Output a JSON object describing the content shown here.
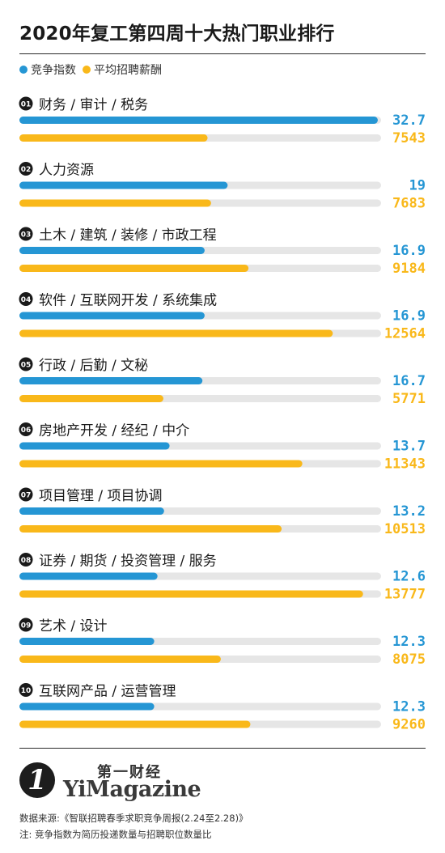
{
  "title": "2020年复工第四周十大热门职业排行",
  "colors": {
    "blue": "#2596d4",
    "yellow": "#f9b81a",
    "track": "#e6e6e6",
    "badge": "#1a1a1a"
  },
  "chart_data": {
    "type": "bar",
    "orientation": "horizontal",
    "title": "2020年复工第四周十大热门职业排行",
    "legend_position": "top-left",
    "categories": [
      {
        "rank": "01",
        "label": "财务 / 审计 / 税务"
      },
      {
        "rank": "02",
        "label": "人力资源"
      },
      {
        "rank": "03",
        "label": "土木 / 建筑 / 装修 / 市政工程"
      },
      {
        "rank": "04",
        "label": "软件 / 互联网开发 / 系统集成"
      },
      {
        "rank": "05",
        "label": "行政 / 后勤 / 文秘"
      },
      {
        "rank": "06",
        "label": "房地产开发 / 经纪 / 中介"
      },
      {
        "rank": "07",
        "label": "项目管理 / 项目协调"
      },
      {
        "rank": "08",
        "label": "证券 / 期货 / 投资管理 / 服务"
      },
      {
        "rank": "09",
        "label": "艺术 / 设计"
      },
      {
        "rank": "10",
        "label": "互联网产品 / 运营管理"
      }
    ],
    "series": [
      {
        "name": "竞争指数",
        "color": "#2596d4",
        "max": 33.0,
        "values": [
          32.7,
          19,
          16.9,
          16.9,
          16.7,
          13.7,
          13.2,
          12.6,
          12.3,
          12.3
        ]
      },
      {
        "name": "平均招聘薪酬",
        "color": "#f9b81a",
        "max": 14500,
        "values": [
          7543,
          7683,
          9184,
          12564,
          5771,
          11343,
          10513,
          13777,
          8075,
          9260
        ]
      }
    ]
  },
  "brand": {
    "cn": "第一财经",
    "en": "YiMagazine",
    "mark": "1"
  },
  "footer": {
    "source": "数据来源:《智联招聘春季求职竞争周报(2.24至2.28)》",
    "note": "注: 竞争指数为简历投递数量与招聘职位数量比"
  }
}
